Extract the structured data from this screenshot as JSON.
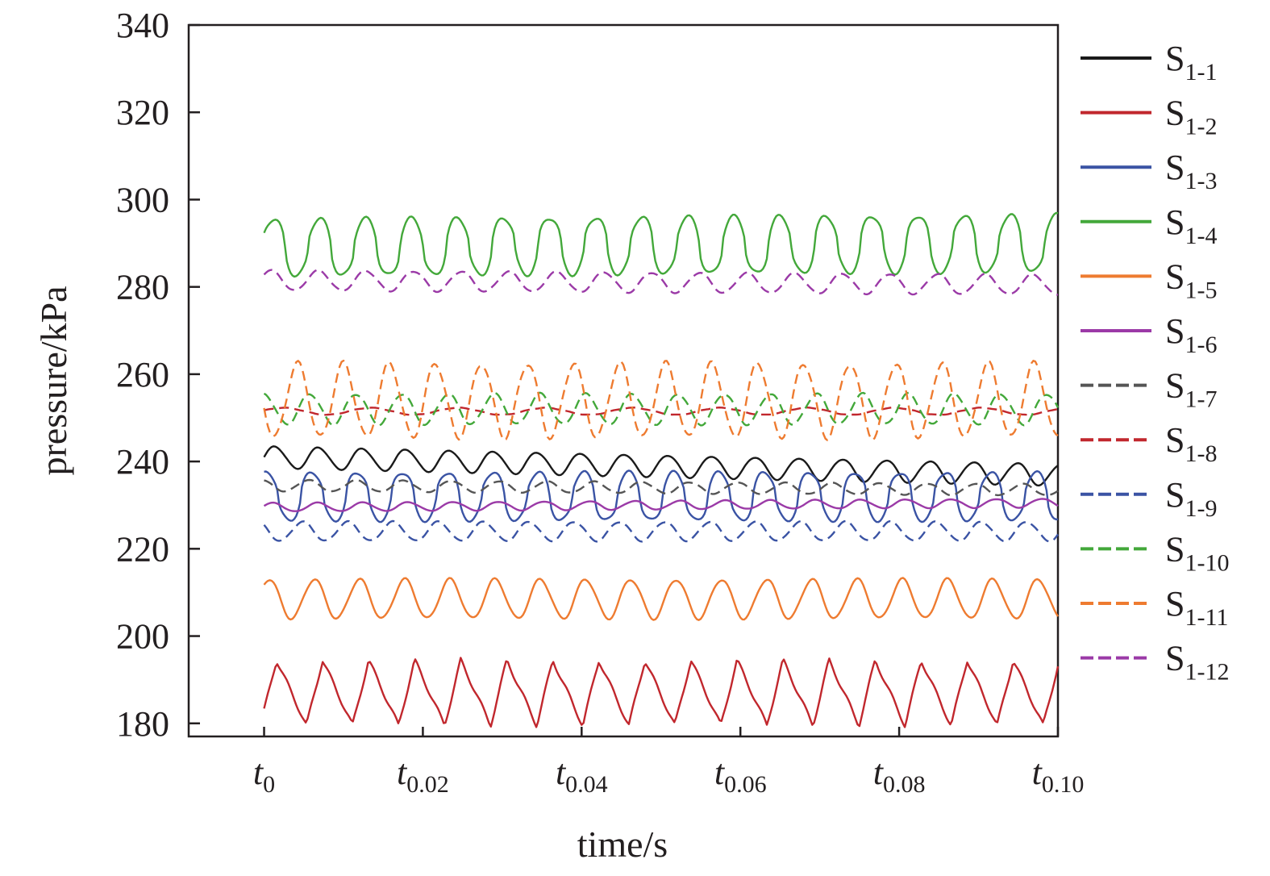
{
  "chart_data": {
    "type": "line",
    "xlabel": "time/s",
    "ylabel": "pressure/kPa",
    "ylim": [
      177,
      340
    ],
    "xlim": [
      -0.0095,
      0.1
    ],
    "y_ticks": [
      180,
      200,
      220,
      240,
      260,
      280,
      300,
      320,
      340
    ],
    "x_ticks": [
      {
        "value": 0,
        "main": "t",
        "sub": "0"
      },
      {
        "value": 0.02,
        "main": "t",
        "sub": "0.02"
      },
      {
        "value": 0.04,
        "main": "t",
        "sub": "0.04"
      },
      {
        "value": 0.06,
        "main": "t",
        "sub": "0.06"
      },
      {
        "value": 0.08,
        "main": "t",
        "sub": "0.08"
      },
      {
        "value": 0.1,
        "main": "t",
        "sub": "0.10"
      }
    ],
    "x_tick_format": "subscript",
    "legend_position": "right",
    "grid": false,
    "series": [
      {
        "name": "S1-1",
        "name_main": "S",
        "name_sub": "1-1",
        "color": "#1a1a1a",
        "dash": "solid",
        "mean": 241,
        "amplitude": 2.5,
        "trend": -4,
        "period": 0.0055,
        "phase": 0.0
      },
      {
        "name": "S1-2",
        "name_main": "S",
        "name_sub": "1-2",
        "color": "#c1272d",
        "dash": "solid",
        "mean": 187,
        "amplitude": 7.5,
        "trend": 0,
        "period": 0.0058,
        "phase": 0.5,
        "shape": "saw"
      },
      {
        "name": "S1-3",
        "name_main": "S",
        "name_sub": "1-3",
        "color": "#3a53a4",
        "dash": "solid",
        "mean": 232,
        "amplitude": 5.5,
        "trend": 0,
        "period": 0.0057,
        "phase": 1.2,
        "shape": "sharp"
      },
      {
        "name": "S1-4",
        "name_main": "S",
        "name_sub": "1-4",
        "color": "#43a83a",
        "dash": "solid",
        "mean": 289,
        "amplitude": 6.5,
        "trend": 1,
        "period": 0.0058,
        "phase": 0.3,
        "shape": "sharp"
      },
      {
        "name": "S1-5",
        "name_main": "S",
        "name_sub": "1-5",
        "color": "#ee7b30",
        "dash": "solid",
        "mean": 208.5,
        "amplitude": 4.5,
        "trend": 0,
        "period": 0.0057,
        "phase": 0.9
      },
      {
        "name": "S1-6",
        "name_main": "S",
        "name_sub": "1-6",
        "color": "#9b3aa7",
        "dash": "solid",
        "mean": 229.5,
        "amplitude": 1.0,
        "trend": 1,
        "period": 0.0057,
        "phase": 0.4
      },
      {
        "name": "S1-7",
        "name_main": "S",
        "name_sub": "1-7",
        "color": "#555555",
        "dash": "dashed",
        "mean": 234.5,
        "amplitude": 1.3,
        "trend": -1,
        "period": 0.006,
        "phase": 2.0
      },
      {
        "name": "S1-8",
        "name_main": "S",
        "name_sub": "1-8",
        "color": "#c1272d",
        "dash": "dashed",
        "mean": 251.5,
        "amplitude": 0.8,
        "trend": 0,
        "period": 0.011,
        "phase": 0.2
      },
      {
        "name": "S1-9",
        "name_main": "S",
        "name_sub": "1-9",
        "color": "#3a53a4",
        "dash": "dashed",
        "mean": 224,
        "amplitude": 2.2,
        "trend": 0,
        "period": 0.0057,
        "phase": 2.5
      },
      {
        "name": "S1-10",
        "name_main": "S",
        "name_sub": "1-10",
        "color": "#43a83a",
        "dash": "dashed",
        "mean": 252,
        "amplitude": 3.5,
        "trend": 0,
        "period": 0.0058,
        "phase": 1.6
      },
      {
        "name": "S1-11",
        "name_main": "S",
        "name_sub": "1-11",
        "color": "#ee7b30",
        "dash": "dashed",
        "mean": 254,
        "amplitude": 8.5,
        "trend": 0,
        "period": 0.0058,
        "phase": 3.3
      },
      {
        "name": "S1-12",
        "name_main": "S",
        "name_sub": "1-12",
        "color": "#9b3aa7",
        "dash": "dashed",
        "mean": 281.5,
        "amplitude": 2.3,
        "trend": -1,
        "period": 0.006,
        "phase": 0.7
      }
    ]
  }
}
